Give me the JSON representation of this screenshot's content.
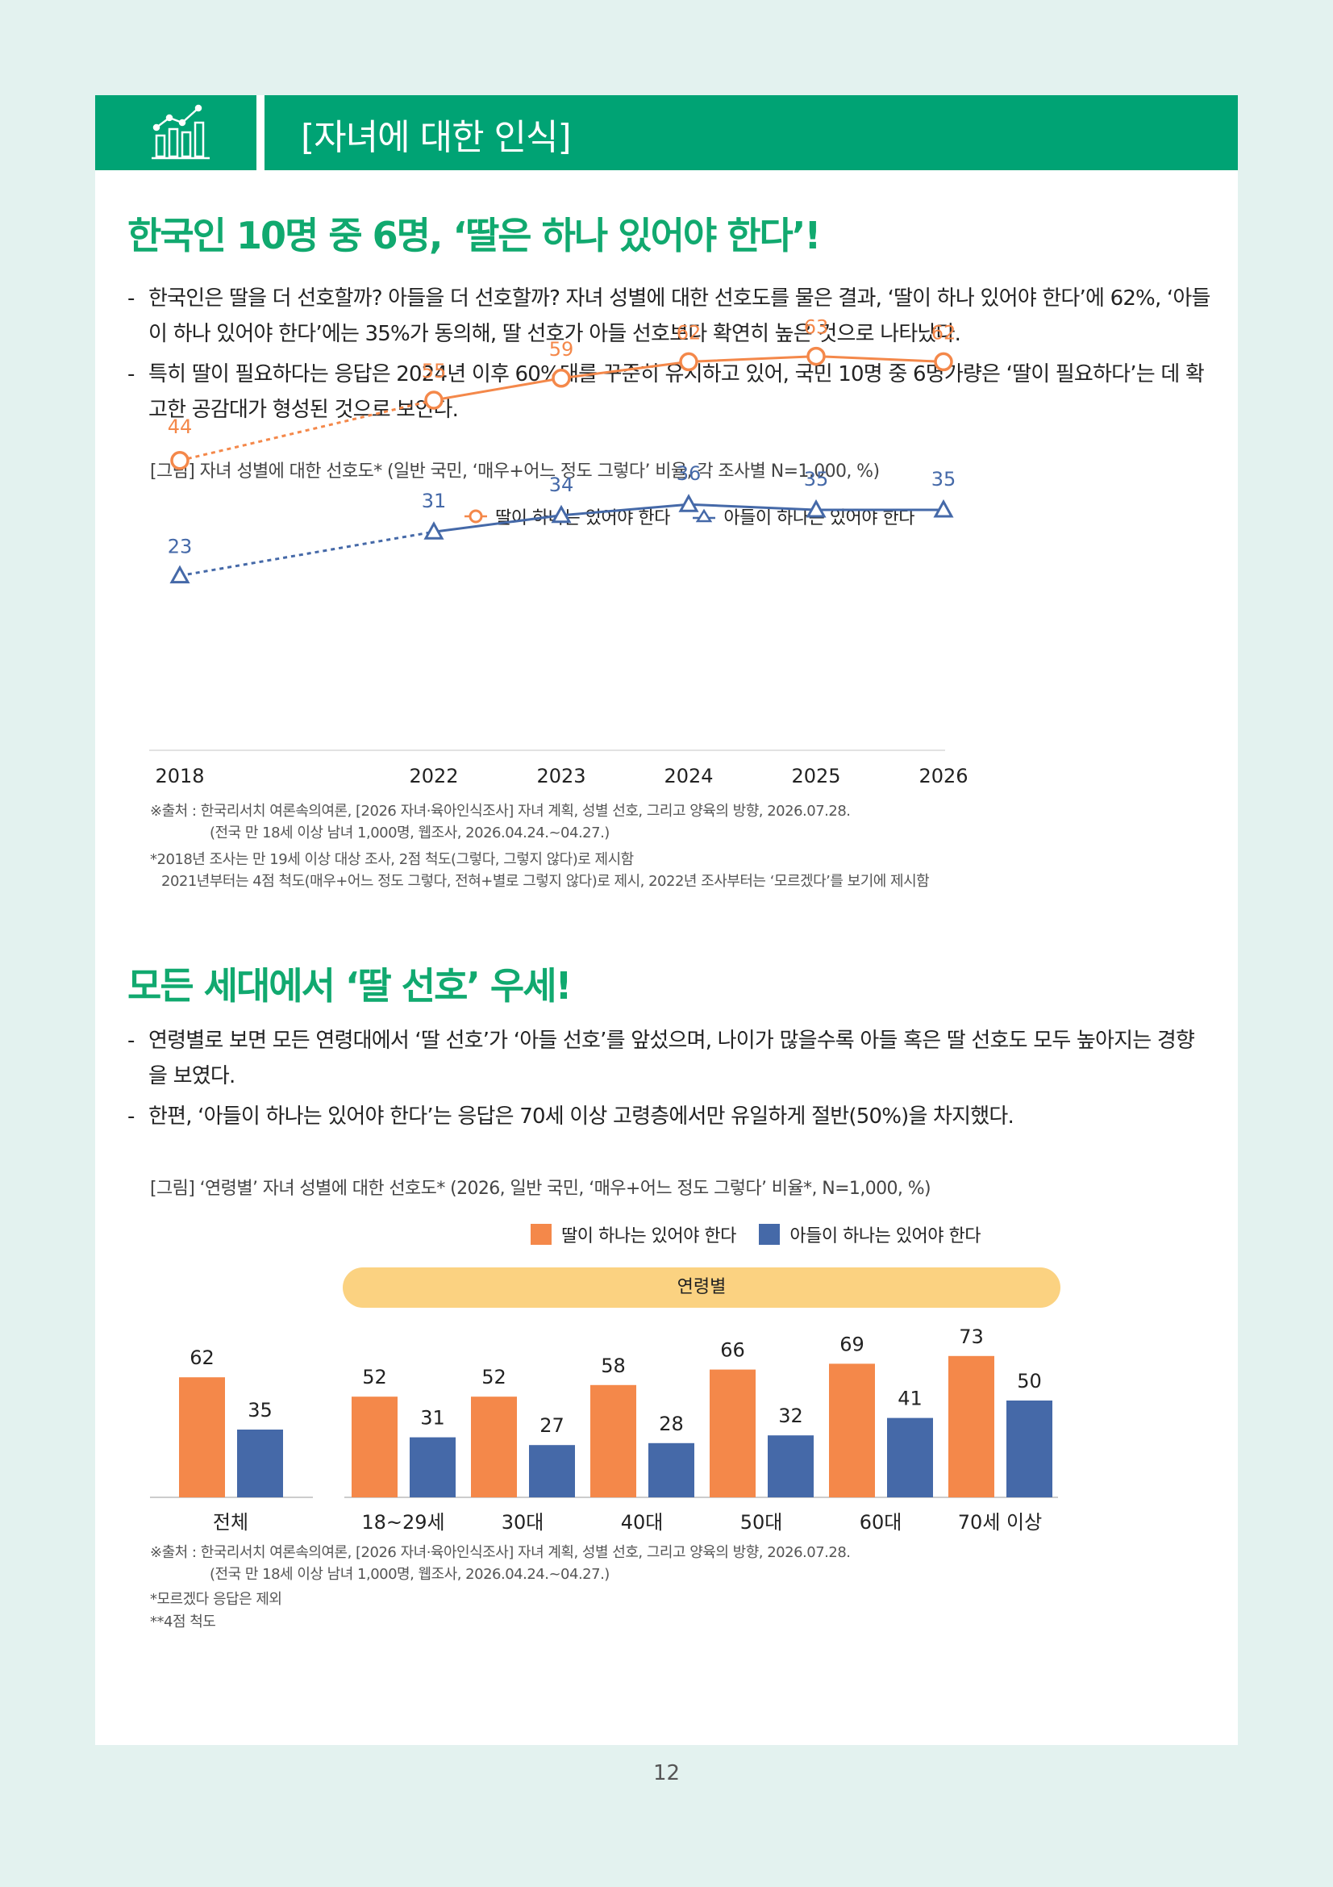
{
  "header": {
    "title": "[자녀에 대한 인식]",
    "icon": "bar-chart-trend-icon"
  },
  "section1": {
    "title": "한국인 10명 중 6명, ‘딸은 하나 있어야 한다’!",
    "bullets": [
      "한국인은 딸을 더 선호할까? 아들을 더 선호할까? 자녀 성별에 대한 선호도를 물은 결과, ‘딸이 하나 있어야 한다’에 62%, ‘아들이 하나 있어야 한다’에는 35%가 동의해, 딸 선호가 아들 선호보다 확연히 높은 것으로 나타났다.",
      "특히 딸이 필요하다는 응답은 2024년 이후 60%대를 꾸준히 유지하고 있어, 국민 10명 중 6명가량은 ‘딸이 필요하다’는 데 확고한 공감대가 형성된 것으로 보인다."
    ],
    "figure_caption": "[그림] 자녀 성별에 대한 선호도* (일반 국민, ‘매우+어느 정도 그렇다’ 비율, 각 조사별 N=1,000, %)",
    "notes": [
      "※출처 : 한국리서치 여론속의여론, [2026 자녀·육아인식조사] 자녀 계획, 성별 선호, 그리고 양육의 방향, 2026.07.28.",
      "(전국 만 18세 이상 남녀 1,000명, 웹조사, 2026.04.24.~04.27.)",
      "*2018년 조사는 만 19세 이상 대상 조사, 2점 척도(그렇다, 그렇지 않다)로 제시함",
      "2021년부터는 4점 척도(매우+어느 정도 그렇다, 전혀+별로 그렇지 않다)로 제시, 2022년 조사부터는 ‘모르겠다’를 보기에 제시함"
    ]
  },
  "section2": {
    "title": "모든 세대에서 ‘딸 선호’ 우세!",
    "bullets": [
      "연령별로 보면 모든 연령대에서 ‘딸 선호’가 ‘아들 선호’를 앞섰으며, 나이가 많을수록 아들 혹은 딸 선호도 모두 높아지는 경향을 보였다.",
      "한편, ‘아들이 하나는 있어야 한다’는 응답은 70세 이상 고령층에서만 유일하게 절반(50%)을 차지했다."
    ],
    "figure_caption": "[그림] ‘연령별’ 자녀 성별에 대한 선호도* (2026, 일반 국민, ‘매우+어느 정도 그렇다’ 비율*,  N=1,000, %)",
    "group_label": "연령별",
    "notes": [
      "※출처 : 한국리서치 여론속의여론, [2026 자녀·육아인식조사] 자녀 계획, 성별 선호, 그리고 양육의 방향, 2026.07.28.",
      "(전국 만 18세 이상 남녀 1,000명, 웹조사, 2026.04.24.~04.27.)",
      "*모르겠다 응답은 제외",
      "**4점 척도"
    ]
  },
  "page_number": "12",
  "colors": {
    "green": "#00a374",
    "orange": "#f4884a",
    "blue": "#4569a8",
    "pill": "#fbd281"
  },
  "chart_data": [
    {
      "type": "line",
      "x": [
        "2018",
        "2022",
        "2023",
        "2024",
        "2025",
        "2026"
      ],
      "series": [
        {
          "name": "딸이 하나는 있어야 한다",
          "values": [
            44,
            55,
            59,
            62,
            63,
            62
          ],
          "color": "#f4884a",
          "marker": "circle"
        },
        {
          "name": "아들이 하나는 있어야 한다",
          "values": [
            23,
            31,
            34,
            36,
            35,
            35
          ],
          "color": "#4569a8",
          "marker": "triangle"
        }
      ],
      "dashed_segment": "2018-2022",
      "grid": false,
      "legend": "top-right"
    },
    {
      "type": "bar",
      "categories": [
        "전체",
        "18~29세",
        "30대",
        "40대",
        "50대",
        "60대",
        "70세 이상"
      ],
      "series": [
        {
          "name": "딸이 하나는 있어야 한다",
          "values": [
            62,
            52,
            52,
            58,
            66,
            69,
            73
          ],
          "color": "#f4884a"
        },
        {
          "name": "아들이 하나는 있어야 한다",
          "values": [
            35,
            31,
            27,
            28,
            32,
            41,
            50
          ],
          "color": "#4569a8"
        }
      ],
      "grid": false,
      "legend": "top-right"
    }
  ]
}
